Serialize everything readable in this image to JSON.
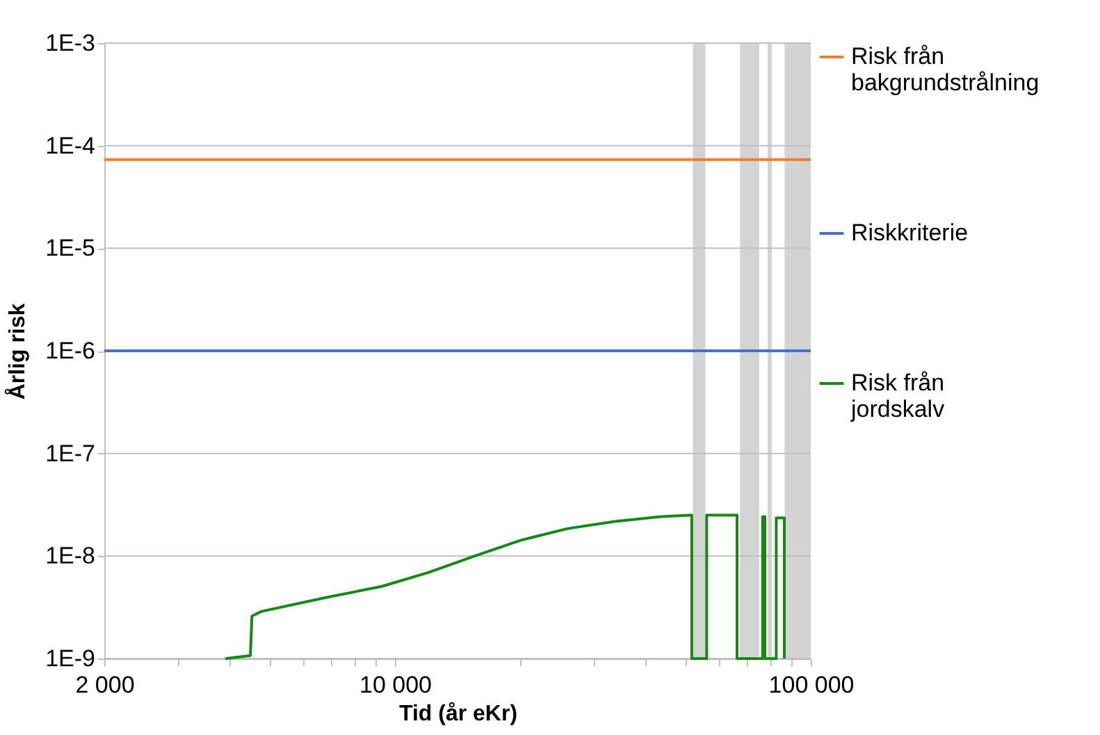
{
  "chart_data": {
    "type": "line",
    "xlabel": "Tid (år eKr)",
    "ylabel": "Årlig risk",
    "log": "xy",
    "grid": "y",
    "legend": "right",
    "marker": "none",
    "line_style": "solid",
    "xlim": [
      2000,
      100000
    ],
    "xticks": [
      {
        "value": 2000,
        "label": "2 000"
      },
      {
        "value": 3000,
        "label": null
      },
      {
        "value": 4000,
        "label": null
      },
      {
        "value": 5000,
        "label": null
      },
      {
        "value": 6000,
        "label": null
      },
      {
        "value": 7000,
        "label": null
      },
      {
        "value": 8000,
        "label": null
      },
      {
        "value": 9000,
        "label": null
      },
      {
        "value": 10000,
        "label": "10 000"
      },
      {
        "value": 20000,
        "label": null
      },
      {
        "value": 30000,
        "label": null
      },
      {
        "value": 40000,
        "label": null
      },
      {
        "value": 50000,
        "label": null
      },
      {
        "value": 60000,
        "label": null
      },
      {
        "value": 70000,
        "label": null
      },
      {
        "value": 80000,
        "label": null
      },
      {
        "value": 90000,
        "label": null
      },
      {
        "value": 100000,
        "label": "100 000"
      }
    ],
    "ylim": [
      1e-09,
      0.001
    ],
    "yticks": [
      {
        "value": 1e-09,
        "label": "1E-9"
      },
      {
        "value": 1e-08,
        "label": "1E-8"
      },
      {
        "value": 1e-07,
        "label": "1E-7"
      },
      {
        "value": 1e-06,
        "label": "1E-6"
      },
      {
        "value": 1e-05,
        "label": "1E-5"
      },
      {
        "value": 0.0001,
        "label": "1E-4"
      },
      {
        "value": 0.001,
        "label": "1E-3"
      }
    ],
    "bands": [
      {
        "axis": "x",
        "from": 52060,
        "to": 55800,
        "color": "#d3d3d3"
      },
      {
        "axis": "x",
        "from": 67600,
        "to": 75150,
        "color": "#d3d3d3"
      },
      {
        "axis": "x",
        "from": 78750,
        "to": 80600,
        "color": "#d3d3d3"
      },
      {
        "axis": "x",
        "from": 86500,
        "to": 100000,
        "color": "#d3d3d3"
      }
    ],
    "series": [
      {
        "name": "Risk från bakgrundstrålning",
        "color": "#ed7d31",
        "x": [
          2000,
          100000
        ],
        "values": [
          7.3e-05,
          7.3e-05
        ]
      },
      {
        "name": "Riskkriterie",
        "color": "#4472c4",
        "x": [
          2000,
          100000
        ],
        "values": [
          1e-06,
          1e-06
        ]
      },
      {
        "name": "Risk från jordskalv",
        "color": "#138a13",
        "x": [
          3906,
          4490,
          4530,
          4775,
          6840,
          9310,
          12030,
          15550,
          20140,
          26030,
          33640,
          43470,
          51400,
          51740,
          51740,
          56200,
          56200,
          66500,
          66500,
          76600,
          76600,
          77600,
          77600,
          82600,
          82600,
          86400,
          86400
        ],
        "values": [
          1e-09,
          1.07e-09,
          2.6e-09,
          2.88e-09,
          3.94e-09,
          5.06e-09,
          6.9e-09,
          1e-08,
          1.43e-08,
          1.85e-08,
          2.17e-08,
          2.42e-08,
          2.5e-08,
          2.5e-08,
          1e-09,
          1e-09,
          2.5e-08,
          2.5e-08,
          1e-09,
          1e-09,
          2.42e-08,
          2.42e-08,
          1e-09,
          1e-09,
          2.35e-08,
          2.35e-08,
          1e-09
        ]
      }
    ]
  }
}
